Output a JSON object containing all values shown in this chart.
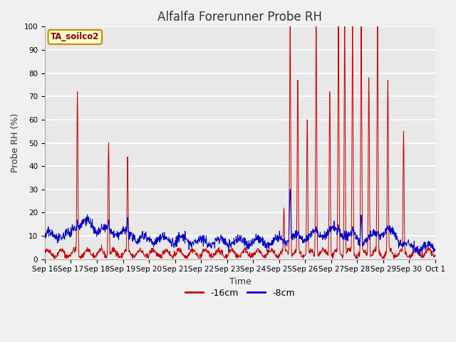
{
  "title": "Alfalfa Forerunner Probe RH",
  "xlabel": "Time",
  "ylabel": "Probe RH (%)",
  "ylim": [
    0,
    100
  ],
  "fig_bg": "#f0f0f0",
  "plot_bg": "#e8e8e8",
  "grid_color": "#ffffff",
  "legend_label": "TA_soilco2",
  "series": {
    "red_label": "-16cm",
    "blue_label": "-8cm",
    "red_color": "#cc0000",
    "blue_color": "#0000cc"
  },
  "xtick_labels": [
    "Sep 16",
    "Sep 17",
    "Sep 18",
    "Sep 19",
    "Sep 20",
    "Sep 21",
    "Sep 22",
    "Sep 23",
    "Sep 24",
    "Sep 25",
    "Sep 26",
    "Sep 27",
    "Sep 28",
    "Sep 29",
    "Sep 30",
    "Oct 1"
  ],
  "title_fontsize": 12,
  "axis_label_fontsize": 9,
  "tick_fontsize": 7.5
}
